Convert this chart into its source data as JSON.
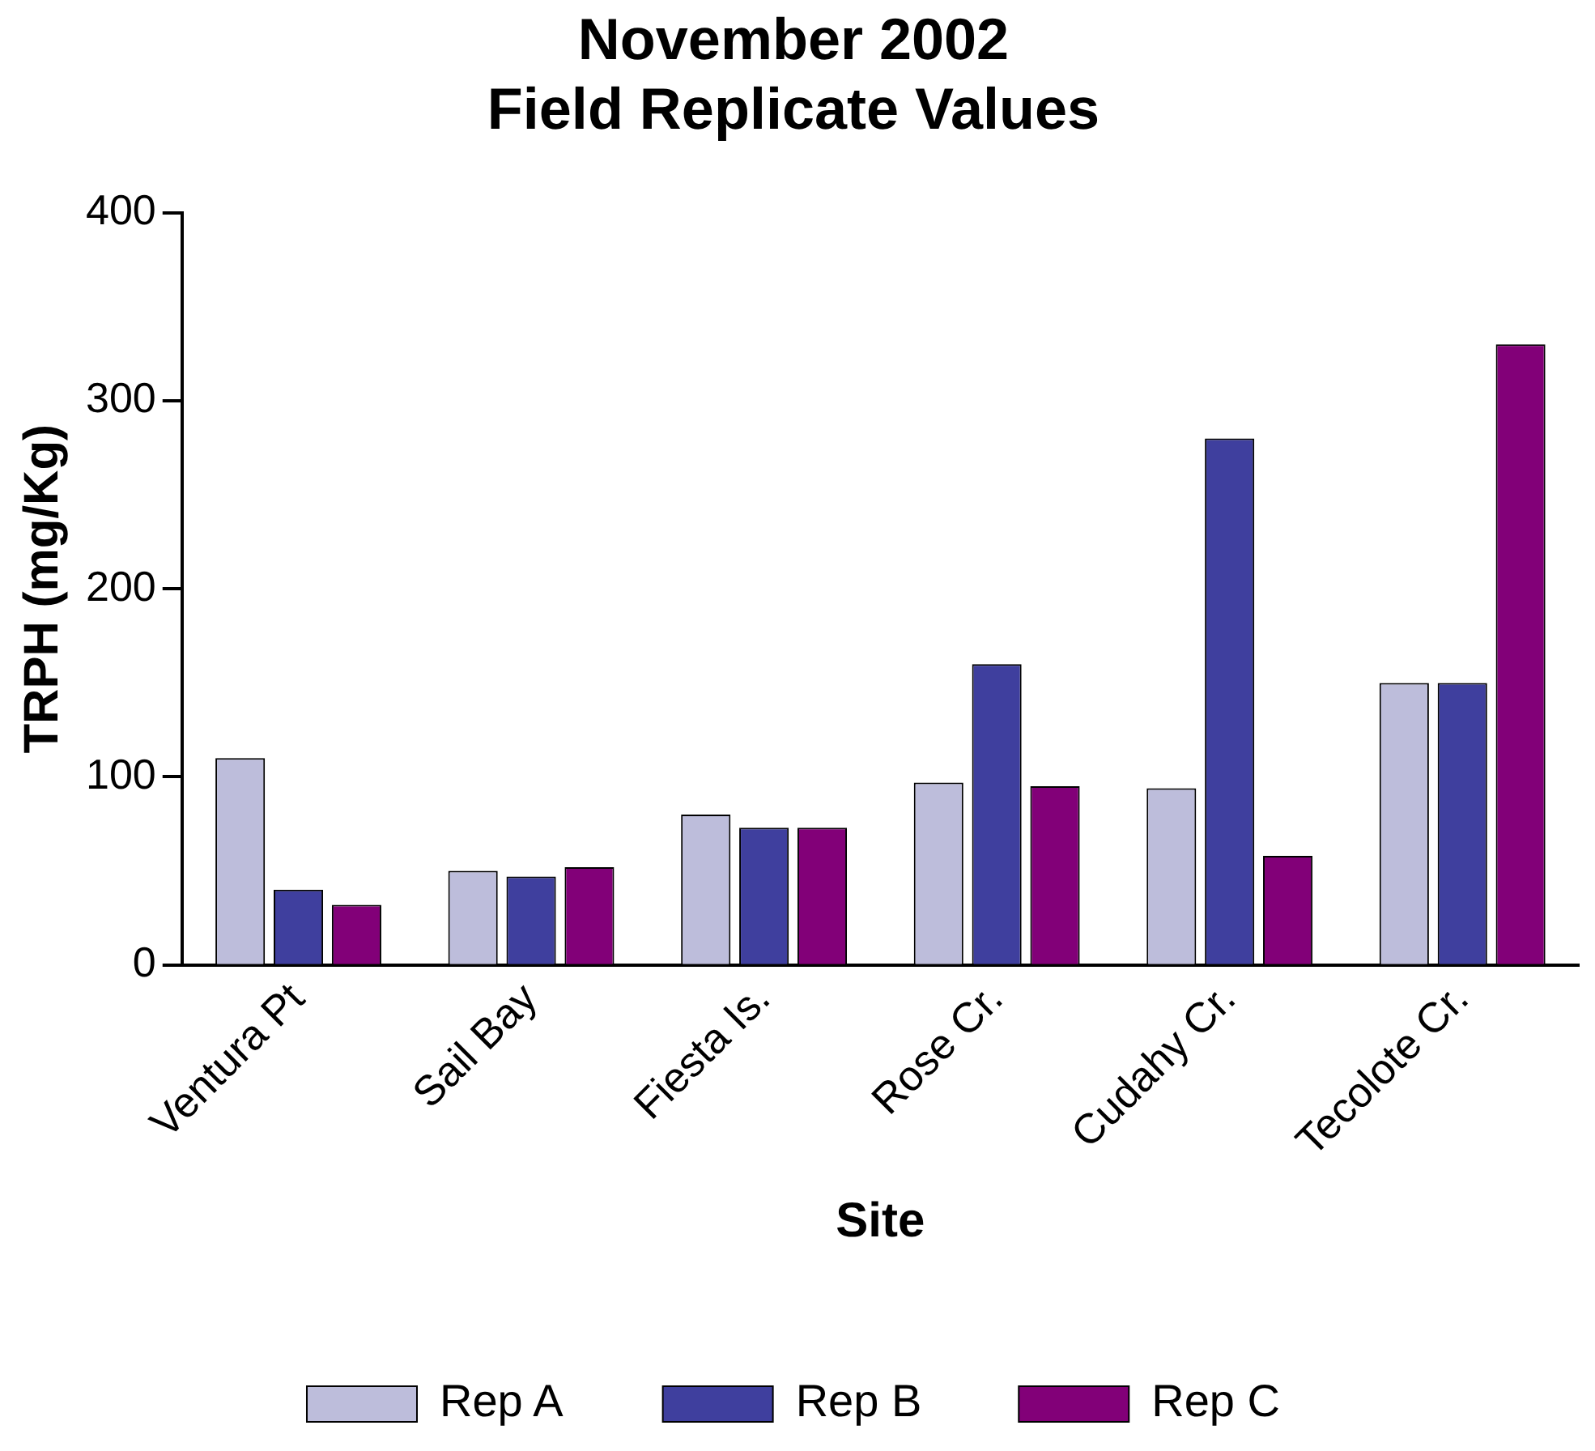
{
  "chart_data": {
    "type": "bar",
    "title": "November 2002\nField Replicate Values",
    "xlabel": "Site",
    "ylabel": "TRPH (mg/Kg)",
    "categories": [
      "Ventura Pt",
      "Sail Bay",
      "Fiesta Is.",
      "Rose Cr.",
      "Cudahy Cr.",
      "Tecolote Cr."
    ],
    "series": [
      {
        "name": "Rep A",
        "color": "#bdbddb",
        "values": [
          110,
          50,
          80,
          97,
          94,
          150
        ]
      },
      {
        "name": "Rep B",
        "color": "#3f3f9e",
        "values": [
          40,
          47,
          73,
          160,
          280,
          150
        ]
      },
      {
        "name": "Rep C",
        "color": "#820078",
        "values": [
          32,
          52,
          73,
          95,
          58,
          330
        ]
      }
    ],
    "ylim": [
      0,
      400
    ],
    "yticks": [
      0,
      100,
      200,
      300,
      400
    ],
    "grid": false,
    "legend": "bottom"
  }
}
